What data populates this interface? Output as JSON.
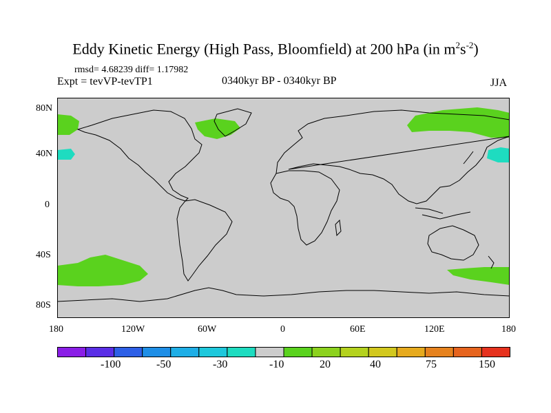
{
  "title": {
    "main": "Eddy Kinetic Energy (High Pass, Bloomfield) at 200 hPa (in m",
    "sup1": "2",
    "mid": "s",
    "sup2": "-2",
    "end": ")"
  },
  "subtitle": {
    "stats": "rmsd= 4.68239 diff= 1.17982",
    "experiment": "Expt = tevVP-tevTP1",
    "period": "0340kyr BP - 0340kyr BP",
    "season": "JJA"
  },
  "axes": {
    "lat_labels": [
      "80N",
      "40N",
      "0",
      "40S",
      "80S"
    ],
    "lon_labels": [
      "180",
      "120W",
      "60W",
      "0",
      "60E",
      "120E",
      "180"
    ]
  },
  "colorbar": {
    "labels": [
      "-100",
      "-50",
      "-30",
      "-10",
      "20",
      "40",
      "75",
      "150"
    ],
    "colors": [
      "#8a1ee6",
      "#5a2ee6",
      "#2d5fe6",
      "#1e8ee6",
      "#1eaee6",
      "#1ec8dc",
      "#1edcc0",
      "#cccccc",
      "#5ad21e",
      "#8cd21e",
      "#b4d21e",
      "#d2c81e",
      "#e6aa1e",
      "#e6821e",
      "#e6641e",
      "#e6321e"
    ]
  },
  "colors": {
    "land_ocean": "#cccccc",
    "positive": "#5ad21e",
    "negative": "#1edcc0"
  }
}
